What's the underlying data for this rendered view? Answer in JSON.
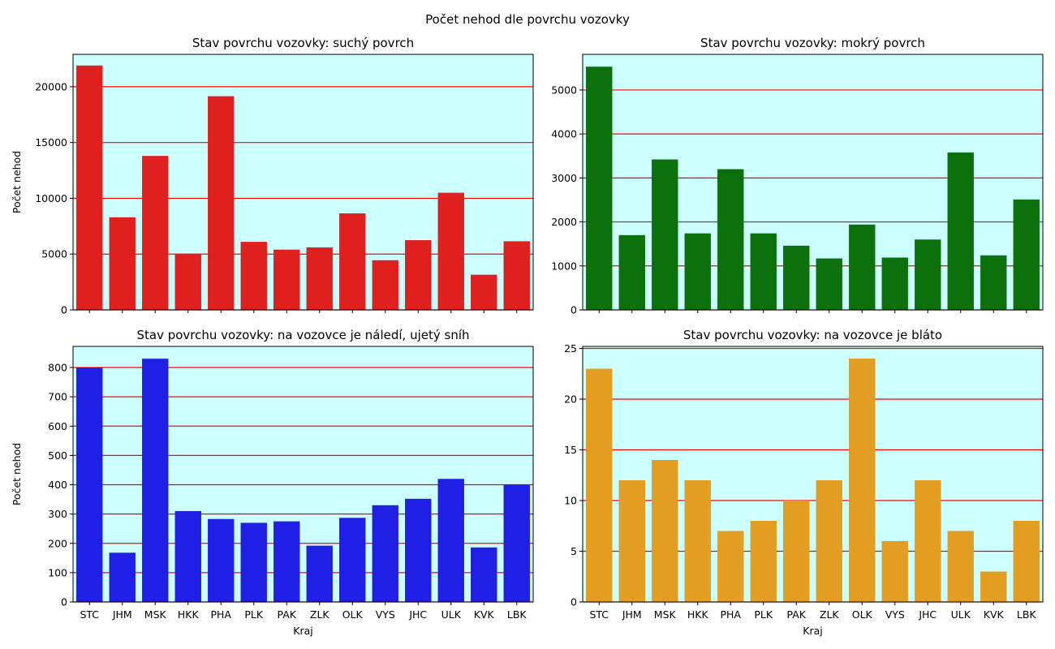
{
  "figure": {
    "suptitle": "Počet nehod dle povrchu vozovky",
    "background": "#ffffff",
    "plot_background": "#ccffff",
    "grid_color": "#ff0000"
  },
  "chart_data": [
    {
      "type": "bar",
      "title": "Stav povrchu vozovky: suchý povrch",
      "xlabel": "",
      "ylabel": "Počet nehod",
      "color": "#e01f1f",
      "categories": [
        "STC",
        "JHM",
        "MSK",
        "HKK",
        "PHA",
        "PLK",
        "PAK",
        "ZLK",
        "OLK",
        "VYS",
        "JHC",
        "ULK",
        "KVK",
        "LBK"
      ],
      "values": [
        21900,
        8300,
        13800,
        5050,
        19150,
        6100,
        5400,
        5600,
        8650,
        4450,
        6250,
        10500,
        3150,
        6150
      ],
      "ylim": [
        0,
        22900
      ],
      "yticks": [
        0,
        5000,
        10000,
        15000,
        20000
      ],
      "show_xticklabels": false,
      "grid": "y"
    },
    {
      "type": "bar",
      "title": "Stav povrchu vozovky: mokrý povrch",
      "xlabel": "",
      "ylabel": "",
      "color": "#0c700c",
      "categories": [
        "STC",
        "JHM",
        "MSK",
        "HKK",
        "PHA",
        "PLK",
        "PAK",
        "ZLK",
        "OLK",
        "VYS",
        "JHC",
        "ULK",
        "KVK",
        "LBK"
      ],
      "values": [
        5530,
        1700,
        3420,
        1740,
        3200,
        1740,
        1460,
        1170,
        1940,
        1190,
        1600,
        3580,
        1240,
        2510
      ],
      "ylim": [
        0,
        5810
      ],
      "yticks": [
        0,
        1000,
        2000,
        3000,
        4000,
        5000
      ],
      "show_xticklabels": false,
      "grid": "y"
    },
    {
      "type": "bar",
      "title": "Stav povrchu vozovky: na vozovce je náledí, ujetý sníh",
      "xlabel": "Kraj",
      "ylabel": "Počet nehod",
      "color": "#1f1fe5",
      "categories": [
        "STC",
        "JHM",
        "MSK",
        "HKK",
        "PHA",
        "PLK",
        "PAK",
        "ZLK",
        "OLK",
        "VYS",
        "JHC",
        "ULK",
        "KVK",
        "LBK"
      ],
      "values": [
        800,
        168,
        830,
        310,
        283,
        270,
        275,
        192,
        287,
        330,
        352,
        420,
        186,
        400
      ],
      "ylim": [
        0,
        872
      ],
      "yticks": [
        0,
        100,
        200,
        300,
        400,
        500,
        600,
        700,
        800
      ],
      "show_xticklabels": true,
      "grid": "y"
    },
    {
      "type": "bar",
      "title": "Stav povrchu vozovky: na vozovce je bláto",
      "xlabel": "Kraj",
      "ylabel": "",
      "color": "#e39d21",
      "categories": [
        "STC",
        "JHM",
        "MSK",
        "HKK",
        "PHA",
        "PLK",
        "PAK",
        "ZLK",
        "OLK",
        "VYS",
        "JHC",
        "ULK",
        "KVK",
        "LBK"
      ],
      "values": [
        23,
        12,
        14,
        12,
        7,
        8,
        10,
        12,
        24,
        6,
        12,
        7,
        3,
        8
      ],
      "ylim": [
        0,
        25.2
      ],
      "yticks": [
        0,
        5,
        10,
        15,
        20,
        25
      ],
      "show_xticklabels": true,
      "grid": "y"
    }
  ]
}
